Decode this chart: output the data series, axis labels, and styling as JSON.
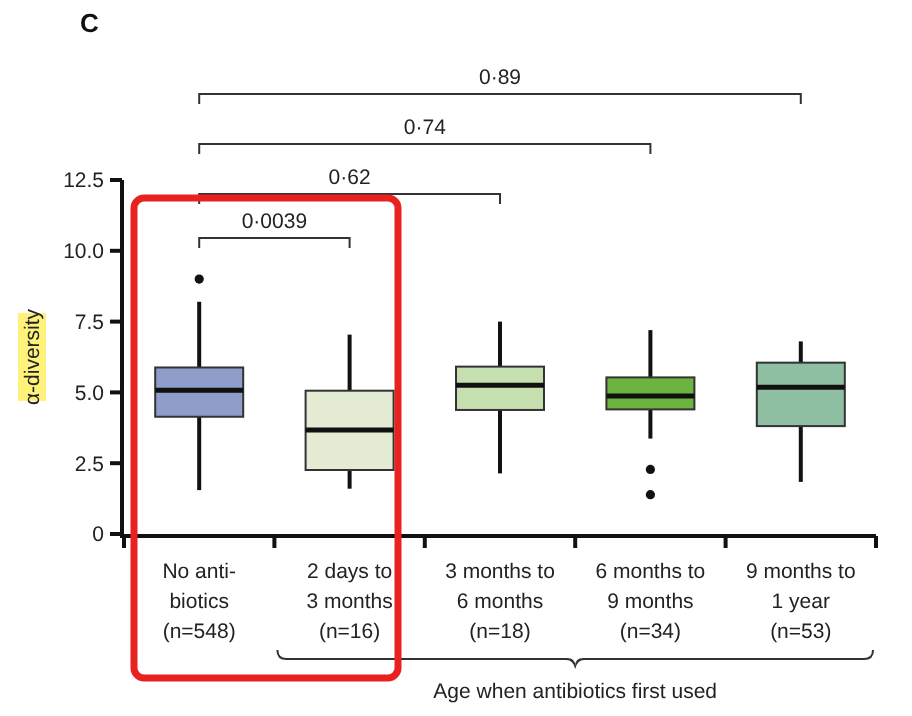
{
  "chart_data": {
    "type": "box",
    "title": "C",
    "ylabel": "α-diversity",
    "xlabel": "Age when antibiotics first used",
    "categories": [
      "No anti-\nbiotics\n(n=548)",
      "2 days to\n3 months\n(n=16)",
      "3 months to\n6 months\n(n=18)",
      "6 months to\n9 months\n(n=34)",
      "9 months to\n1 year\n(n=53)"
    ],
    "colors": [
      "#8e9dc9",
      "#e3ecd3",
      "#c5dfae",
      "#6cb33f",
      "#8fbfa3"
    ],
    "boxes": [
      {
        "low": 1.55,
        "q1": 4.14,
        "median": 5.08,
        "q3": 5.88,
        "high": 8.2,
        "outliers": [
          9.0
        ]
      },
      {
        "low": 1.6,
        "q1": 2.26,
        "median": 3.67,
        "q3": 5.06,
        "high": 7.04
      },
      {
        "low": 2.14,
        "q1": 4.38,
        "median": 5.25,
        "q3": 5.91,
        "high": 7.5
      },
      {
        "low": 3.37,
        "q1": 4.4,
        "median": 4.87,
        "q3": 5.53,
        "high": 7.2,
        "outliers": [
          2.28,
          1.39
        ]
      },
      {
        "low": 1.84,
        "q1": 3.81,
        "median": 5.18,
        "q3": 6.05,
        "high": 6.8
      }
    ],
    "ylim": [
      0,
      12.5
    ],
    "yticks": [
      0,
      2.5,
      {
        "value": 5,
        "label": "5.0"
      },
      7.5,
      {
        "value": 10,
        "label": "10.0"
      },
      12.5
    ],
    "annotations": [
      "0·0039",
      "0·62",
      "0·74",
      "0·89"
    ]
  }
}
